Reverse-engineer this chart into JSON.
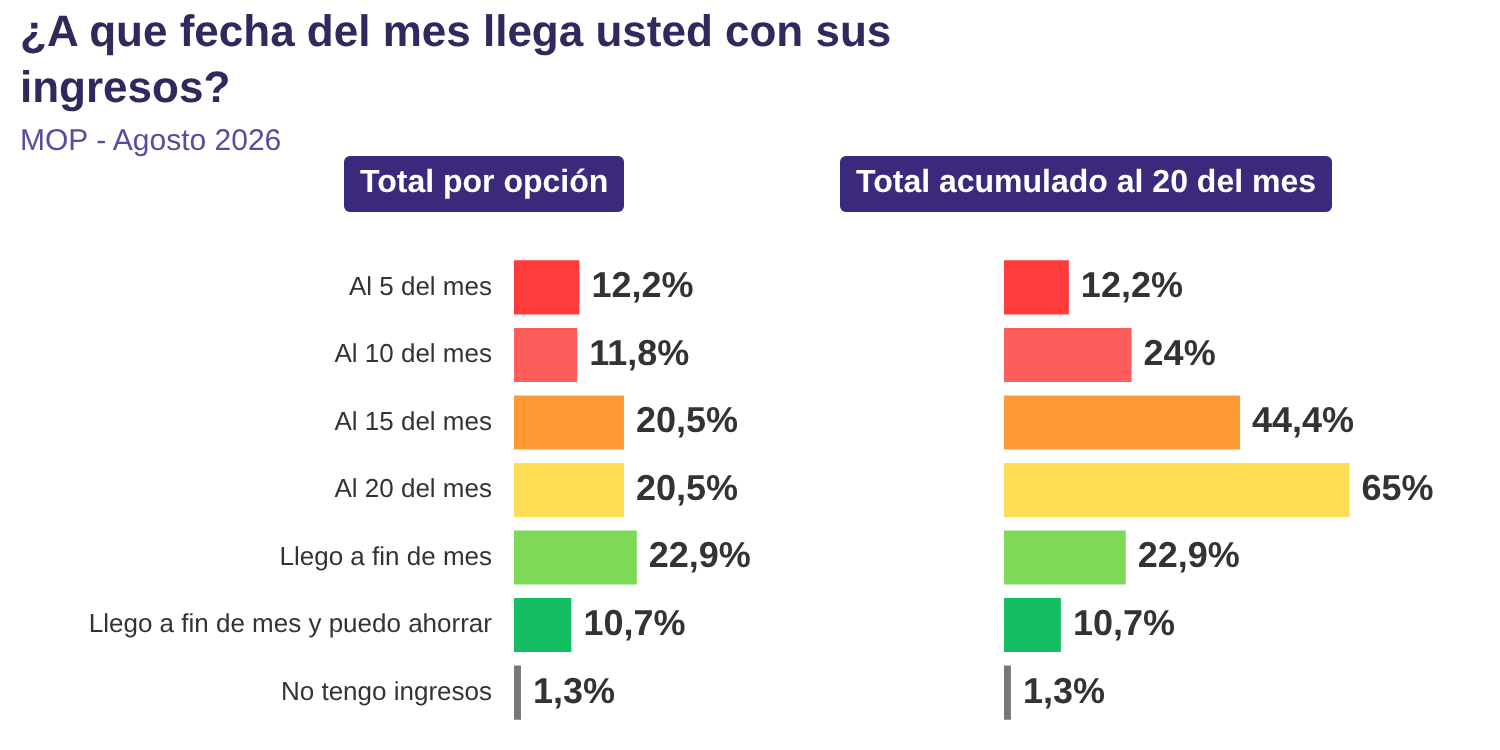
{
  "chart_data": [
    {
      "type": "other",
      "title": "¿A que fecha del mes llega usted con sus ingresos?",
      "subtitle": "MOP - Agosto 2026"
    },
    {
      "type": "bar",
      "orientation": "horizontal",
      "title": "Total por opción",
      "categories": [
        "Al 5 del mes",
        "Al 10 del mes",
        "Al 15 del mes",
        "Al 20 del mes",
        "Llego a fin de mes",
        "Llego a fin de mes y puedo ahorrar",
        "No tengo ingresos"
      ],
      "values": [
        12.2,
        11.8,
        20.5,
        20.5,
        22.9,
        10.7,
        1.3
      ],
      "colors": [
        "#ff3b3b",
        "#ff5c5c",
        "#ff9933",
        "#ffdd55",
        "#7ed957",
        "#14bf63",
        "#777777"
      ],
      "value_labels": [
        "12,2%",
        "11,8%",
        "20,5%",
        "20,5%",
        "22,9%",
        "10,7%",
        "1,3%"
      ]
    },
    {
      "type": "bar",
      "orientation": "horizontal",
      "title": "Total acumulado al 20 del mes",
      "categories": [
        null,
        null,
        null,
        null,
        null,
        null,
        null
      ],
      "values": [
        12.2,
        24,
        44.4,
        65,
        22.9,
        10.7,
        1.3
      ],
      "colors": [
        "#ff3b3b",
        "#ff5c5c",
        "#ff9933",
        "#ffdd55",
        "#7ed957",
        "#14bf63",
        "#777777"
      ],
      "value_labels": [
        "12,2%",
        "24%",
        "44,4%",
        "65%",
        "22,9%",
        "10,7%",
        "1,3%"
      ]
    }
  ]
}
